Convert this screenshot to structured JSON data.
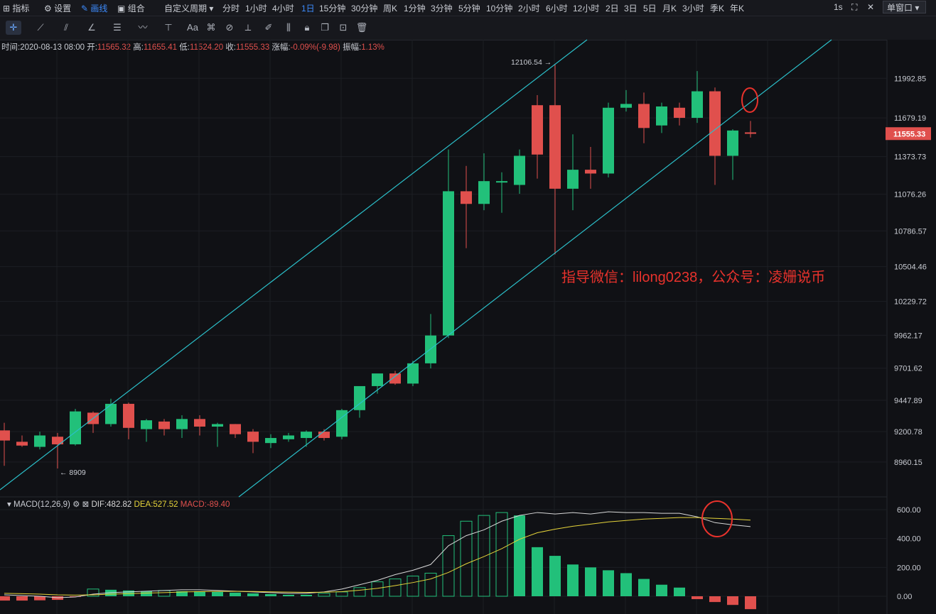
{
  "topbar": {
    "indicator": "指标",
    "settings": "设置",
    "draw": "画线",
    "combo": "组合",
    "custom_period": "自定义周期",
    "periods": [
      "分时",
      "1小时",
      "4小时",
      "1日",
      "15分钟",
      "30分钟",
      "周K",
      "1分钟",
      "3分钟",
      "5分钟",
      "10分钟",
      "2小时",
      "6小时",
      "12小时",
      "2日",
      "3日",
      "5日",
      "月K",
      "3小时",
      "季K",
      "年K"
    ],
    "active_period": "1日",
    "refresh": "1s",
    "window_mode": "单窗口"
  },
  "info": {
    "time_label": "时间:",
    "time": "2020-08-13 08:00",
    "open_label": "开:",
    "open": "11565.32",
    "high_label": "高:",
    "high": "11655.41",
    "low_label": "低:",
    "low": "11524.20",
    "close_label": "收:",
    "close": "11555.33",
    "change_label": "涨幅:",
    "change": "-0.09%(-9.98)",
    "amp_label": "振幅:",
    "amp": "1.13%"
  },
  "macd_header": {
    "name": "MACD(12,26,9)",
    "dif": "DIF:482.82",
    "dea": "DEA:527.52",
    "macd": "MACD:-89.40"
  },
  "annotation": "指导微信：lilong0238，公众号：凌姗说币",
  "colors": {
    "up": "#22c07a",
    "down": "#e0504d",
    "channel": "#2bbfc9",
    "dif": "#d8d8d8",
    "dea": "#e6d43a",
    "annot": "#e8322c"
  },
  "chart_data": [
    {
      "type": "candlestick",
      "price_axis_ticks": [
        11992.85,
        11679.19,
        11373.73,
        11076.26,
        10786.57,
        10504.46,
        10229.72,
        9962.17,
        9701.62,
        9447.89,
        9200.78,
        8960.15
      ],
      "current_price": "11555.33",
      "high_marker": "12106.54 →",
      "low_marker": "← 8909",
      "candles": [
        {
          "o": 9210,
          "h": 9270,
          "l": 8930,
          "c": 9130
        },
        {
          "o": 9120,
          "h": 9170,
          "l": 9080,
          "c": 9090
        },
        {
          "o": 9080,
          "h": 9200,
          "l": 9060,
          "c": 9170
        },
        {
          "o": 9160,
          "h": 9190,
          "l": 8909,
          "c": 9100
        },
        {
          "o": 9100,
          "h": 9380,
          "l": 9090,
          "c": 9360
        },
        {
          "o": 9350,
          "h": 9360,
          "l": 9190,
          "c": 9260
        },
        {
          "o": 9260,
          "h": 9460,
          "l": 9240,
          "c": 9420
        },
        {
          "o": 9420,
          "h": 9430,
          "l": 9140,
          "c": 9230
        },
        {
          "o": 9220,
          "h": 9300,
          "l": 9120,
          "c": 9290
        },
        {
          "o": 9280,
          "h": 9300,
          "l": 9170,
          "c": 9220
        },
        {
          "o": 9220,
          "h": 9330,
          "l": 9150,
          "c": 9300
        },
        {
          "o": 9300,
          "h": 9330,
          "l": 9170,
          "c": 9240
        },
        {
          "o": 9240,
          "h": 9270,
          "l": 9080,
          "c": 9260
        },
        {
          "o": 9260,
          "h": 9260,
          "l": 9150,
          "c": 9180
        },
        {
          "o": 9200,
          "h": 9220,
          "l": 9030,
          "c": 9120
        },
        {
          "o": 9110,
          "h": 9180,
          "l": 9070,
          "c": 9150
        },
        {
          "o": 9140,
          "h": 9190,
          "l": 9120,
          "c": 9170
        },
        {
          "o": 9150,
          "h": 9210,
          "l": 9080,
          "c": 9200
        },
        {
          "o": 9200,
          "h": 9220,
          "l": 9130,
          "c": 9150
        },
        {
          "o": 9160,
          "h": 9380,
          "l": 9140,
          "c": 9370
        },
        {
          "o": 9370,
          "h": 9540,
          "l": 9310,
          "c": 9560
        },
        {
          "o": 9560,
          "h": 9640,
          "l": 9500,
          "c": 9660
        },
        {
          "o": 9660,
          "h": 9680,
          "l": 9570,
          "c": 9580
        },
        {
          "o": 9580,
          "h": 9760,
          "l": 9560,
          "c": 9740
        },
        {
          "o": 9740,
          "h": 10130,
          "l": 9700,
          "c": 9960
        },
        {
          "o": 9960,
          "h": 11430,
          "l": 9940,
          "c": 11100
        },
        {
          "o": 11100,
          "h": 11300,
          "l": 10650,
          "c": 11000
        },
        {
          "o": 11000,
          "h": 11400,
          "l": 10950,
          "c": 11180
        },
        {
          "o": 11170,
          "h": 11250,
          "l": 10930,
          "c": 11180
        },
        {
          "o": 11150,
          "h": 11430,
          "l": 11080,
          "c": 11380
        },
        {
          "o": 11780,
          "h": 11860,
          "l": 11200,
          "c": 11390
        },
        {
          "o": 11780,
          "h": 12106.54,
          "l": 10600,
          "c": 11120
        },
        {
          "o": 11120,
          "h": 11550,
          "l": 10950,
          "c": 11270
        },
        {
          "o": 11270,
          "h": 11450,
          "l": 11120,
          "c": 11240
        },
        {
          "o": 11240,
          "h": 11800,
          "l": 11210,
          "c": 11760
        },
        {
          "o": 11760,
          "h": 11900,
          "l": 11730,
          "c": 11790
        },
        {
          "o": 11790,
          "h": 11880,
          "l": 11480,
          "c": 11600
        },
        {
          "o": 11620,
          "h": 11800,
          "l": 11560,
          "c": 11770
        },
        {
          "o": 11760,
          "h": 11800,
          "l": 11620,
          "c": 11680
        },
        {
          "o": 11680,
          "h": 12050,
          "l": 11640,
          "c": 11890
        },
        {
          "o": 11890,
          "h": 11920,
          "l": 11150,
          "c": 11380
        },
        {
          "o": 11380,
          "h": 11590,
          "l": 11190,
          "c": 11580
        },
        {
          "o": 11565.32,
          "h": 11655.41,
          "l": 11524.2,
          "c": 11555.33
        }
      ]
    },
    {
      "type": "macd",
      "y_ticks": [
        600,
        400,
        200,
        0
      ],
      "hist": [
        -30,
        -30,
        -28,
        -25,
        -5,
        50,
        45,
        40,
        35,
        40,
        35,
        35,
        30,
        25,
        20,
        15,
        10,
        10,
        20,
        30,
        60,
        100,
        120,
        140,
        160,
        420,
        520,
        560,
        580,
        560,
        340,
        280,
        220,
        200,
        180,
        160,
        120,
        80,
        60,
        -20,
        -40,
        -60,
        -89.4
      ],
      "dif": [
        10,
        5,
        0,
        -10,
        -5,
        15,
        25,
        30,
        35,
        40,
        45,
        45,
        40,
        35,
        30,
        25,
        20,
        20,
        30,
        50,
        80,
        110,
        150,
        180,
        220,
        350,
        420,
        460,
        520,
        560,
        580,
        570,
        580,
        570,
        585,
        580,
        580,
        575,
        575,
        550,
        510,
        495,
        482.82
      ],
      "dea": [
        20,
        18,
        15,
        10,
        8,
        10,
        15,
        18,
        22,
        25,
        30,
        32,
        34,
        34,
        33,
        31,
        29,
        27,
        28,
        32,
        42,
        55,
        74,
        95,
        120,
        165,
        225,
        275,
        330,
        395,
        440,
        465,
        485,
        500,
        515,
        525,
        535,
        540,
        545,
        545,
        540,
        535,
        527.52
      ]
    }
  ]
}
